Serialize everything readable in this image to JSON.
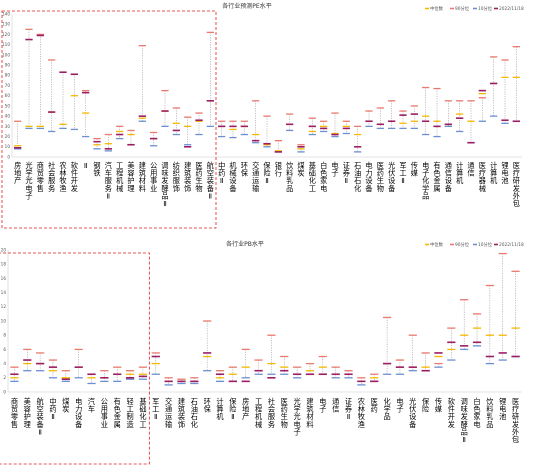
{
  "legend_labels": [
    "中位数",
    "90分位",
    "10分位",
    "2022/11/18"
  ],
  "colors": {
    "median": "#f5b800",
    "p90": "#e87a6e",
    "p10": "#6b8fd1",
    "current": "#9b1d63",
    "current_line": "#888888",
    "axis": "#cccccc",
    "box": "#e02020"
  },
  "chart_data": [
    {
      "type": "range-dot",
      "title": "各行业预测PE水平",
      "ylim": [
        0,
        140
      ],
      "yticks": [
        "0",
        "10",
        "20",
        "30",
        "40",
        "50",
        "60",
        "70",
        "80",
        "90",
        "100",
        "110",
        "120",
        "130",
        "140"
      ],
      "series_names": [
        "中位数",
        "90分位",
        "10分位",
        "2022/11/18"
      ],
      "highlight_range": [
        0,
        17
      ],
      "categories": [
        "房地产",
        "光学光电子",
        "商贸零售",
        "社会服务",
        "农林牧渔",
        "软件开发",
        "Ⅱ",
        "钢铁",
        "汽车服务Ⅱ",
        "工程机械",
        "美容护理",
        "建筑材料",
        "公用事业",
        "调味发酵品Ⅱ",
        "纺织服饰",
        "建筑装饰",
        "医药生物",
        "航空装备Ⅱ",
        "中药Ⅱ",
        "机械设备",
        "环保",
        "交通运输",
        "保险Ⅱ",
        "银行",
        "饮料乳品",
        "煤炭",
        "基础化工",
        "白色家电",
        "电子",
        "证券Ⅱ",
        "石油石化",
        "电力设备",
        "医药生物",
        "光伏设备",
        "军工Ⅱ",
        "传媒",
        "电子化学品",
        "有色金属",
        "通信设备",
        "计算机",
        "通信",
        "医疗器械",
        "计算机",
        "锂电池",
        "医疗研发外包"
      ],
      "p90": [
        35,
        125,
        120,
        95,
        83,
        81,
        65,
        18,
        22,
        30,
        26,
        109,
        24,
        65,
        48,
        39,
        43,
        122,
        35,
        35,
        35,
        55,
        40,
        16,
        42,
        12,
        38,
        35,
        43,
        35,
        30,
        45,
        48,
        55,
        45,
        50,
        68,
        67,
        55,
        55,
        55,
        58,
        98,
        95,
        108
      ],
      "median": [
        11,
        30,
        30,
        44,
        32,
        60,
        43,
        12,
        13,
        25,
        22,
        38,
        18,
        45,
        33,
        30,
        35,
        55,
        30,
        27,
        30,
        22,
        12,
        6,
        32,
        8,
        25,
        30,
        23,
        30,
        22,
        35,
        32,
        35,
        33,
        35,
        40,
        35,
        32,
        42,
        35,
        62,
        72,
        78,
        78
      ],
      "p10": [
        8,
        28,
        28,
        25,
        28,
        27,
        20,
        8,
        6,
        18,
        12,
        35,
        11,
        30,
        22,
        12,
        22,
        30,
        20,
        19,
        22,
        14,
        10,
        5,
        26,
        5,
        22,
        25,
        20,
        23,
        5,
        30,
        28,
        28,
        28,
        28,
        22,
        20,
        30,
        25,
        14,
        35,
        40,
        33,
        35
      ],
      "current": [
        9,
        115,
        119,
        44,
        83,
        81,
        63,
        15,
        8,
        22,
        12,
        40,
        18,
        45,
        26,
        10,
        36,
        55,
        30,
        30,
        30,
        16,
        13,
        5,
        32,
        10,
        30,
        28,
        22,
        28,
        10,
        35,
        32,
        35,
        41,
        42,
        35,
        30,
        32,
        38,
        14,
        65,
        72,
        36,
        35
      ]
    },
    {
      "type": "range-dot",
      "title": "各行业PB水平",
      "ylim": [
        0,
        20
      ],
      "yticks": [
        "0",
        "2",
        "4",
        "6",
        "8",
        "10",
        "12",
        "14",
        "16",
        "18",
        "20"
      ],
      "series_names": [
        "中位数",
        "90分位",
        "10分位",
        "2022/11/18"
      ],
      "highlight_range": [
        0,
        10
      ],
      "categories": [
        "商贸零售",
        "美容护理",
        "航空装备Ⅱ",
        "中药Ⅱ",
        "煤炭",
        "电力设备",
        "汽车",
        "公用事业",
        "有色金属",
        "轻工制造",
        "基础化工",
        "军工Ⅱ",
        "交通运输",
        "建筑装饰",
        "石油石化",
        "环保",
        "计算机",
        "保险Ⅱ",
        "房地产",
        "工程机械",
        "社会服务",
        "医药生物",
        "光学光电子",
        "建筑材料",
        "电子",
        "通信",
        "证券Ⅱ",
        "农林牧渔",
        "医药",
        "化学品",
        "电子",
        "光伏设备",
        "保险",
        "传媒",
        "软件开发",
        "调味发酵品Ⅱ",
        "白色家电",
        "饮料乳品",
        "锂电池",
        "医疗研发外包"
      ],
      "p90": [
        3.5,
        6,
        5.5,
        4.5,
        3,
        6,
        2.5,
        3,
        3.5,
        3,
        3.5,
        5.5,
        2,
        1.8,
        2,
        10,
        3,
        3.5,
        6,
        4.5,
        8,
        5,
        3.5,
        4,
        5,
        3.5,
        3,
        2,
        2.5,
        10.5,
        4.5,
        8,
        5.5,
        4,
        9,
        13,
        11,
        15,
        19.5,
        17
      ],
      "median": [
        2,
        4,
        4,
        3,
        2,
        3.5,
        2,
        2,
        2.5,
        2.5,
        2.5,
        4,
        1.5,
        1.5,
        1.5,
        5,
        2,
        2.5,
        3.5,
        3,
        4,
        3.5,
        2.5,
        3,
        3.5,
        2.5,
        2.5,
        1.5,
        2,
        4,
        3.5,
        3.5,
        3.5,
        5,
        6,
        8,
        9,
        8,
        8,
        9
      ],
      "p10": [
        1.5,
        3,
        3,
        2,
        1.5,
        2,
        1.2,
        1.5,
        1.5,
        1.8,
        1.8,
        2.5,
        1,
        1.2,
        1.2,
        3,
        1.5,
        1.5,
        2,
        2.5,
        2.5,
        2.5,
        2,
        2.5,
        2.5,
        2,
        2,
        1,
        1.5,
        2.5,
        2.5,
        3,
        3,
        3.5,
        4.5,
        6,
        6.5,
        4,
        4.5,
        5
      ],
      "current": [
        2.5,
        4.5,
        4,
        3.5,
        1.8,
        3.5,
        2.5,
        2,
        2.5,
        2,
        2.2,
        5,
        1.5,
        1.5,
        1.5,
        5.5,
        2.5,
        1.5,
        1.5,
        3,
        2,
        3,
        2.5,
        2.5,
        2.5,
        2.5,
        2.5,
        1.5,
        1.5,
        4,
        3.5,
        3.5,
        3,
        5.5,
        7,
        6.5,
        7,
        5,
        5.5,
        5
      ]
    }
  ]
}
